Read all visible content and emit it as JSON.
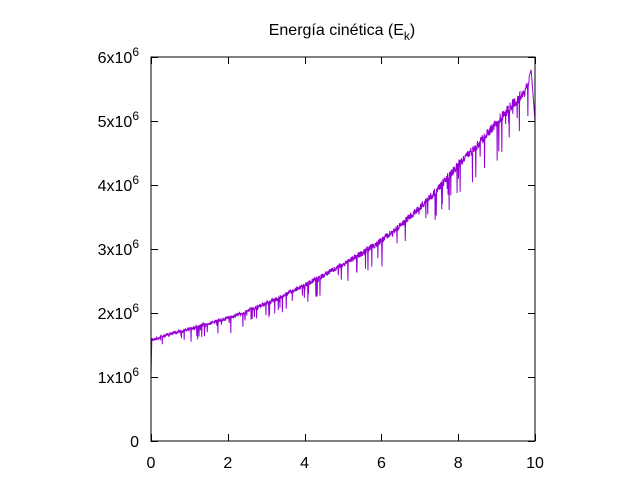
{
  "chart_data": {
    "type": "line",
    "title": "Energía cinética (E",
    "title_subscript": "k",
    "title_suffix": ")",
    "xlabel": "",
    "ylabel": "",
    "xlim": [
      0,
      10
    ],
    "ylim": [
      0,
      6000000
    ],
    "x_ticks": [
      0,
      2,
      4,
      6,
      8,
      10
    ],
    "x_tick_labels": [
      "0",
      "2",
      "4",
      "6",
      "8",
      "10"
    ],
    "y_ticks": [
      0,
      1000000,
      2000000,
      3000000,
      4000000,
      5000000,
      6000000
    ],
    "y_tick_labels": [
      {
        "base": "0",
        "exp": ""
      },
      {
        "base": "1x10",
        "exp": "6"
      },
      {
        "base": "2x10",
        "exp": "6"
      },
      {
        "base": "3x10",
        "exp": "6"
      },
      {
        "base": "4x10",
        "exp": "6"
      },
      {
        "base": "5x10",
        "exp": "6"
      },
      {
        "base": "6x10",
        "exp": "6"
      }
    ],
    "grid": false,
    "series": [
      {
        "color": "#9400d3",
        "note_envelope": "noisy trace; upper envelope values, with frequent downward spikes",
        "x": [
          0,
          0.02,
          0.5,
          1,
          1.5,
          2,
          2.5,
          3,
          3.5,
          4,
          4.5,
          5,
          5.5,
          6,
          6.5,
          7,
          7.5,
          8,
          8.5,
          9,
          9.5,
          9.8,
          9.9,
          10
        ],
        "y": [
          1000000,
          1600000,
          1700000,
          1780000,
          1860000,
          1950000,
          2060000,
          2180000,
          2320000,
          2470000,
          2630000,
          2800000,
          2980000,
          3180000,
          3420000,
          3700000,
          4020000,
          4380000,
          4700000,
          5050000,
          5400000,
          5600000,
          5800000,
          5000000
        ]
      }
    ]
  }
}
